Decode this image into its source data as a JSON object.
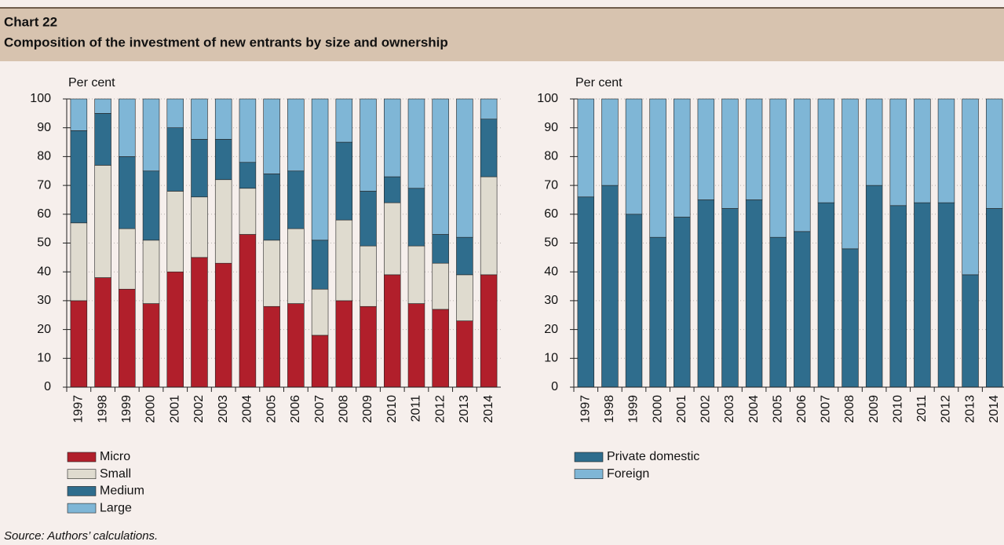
{
  "header": {
    "label": "Chart 22",
    "title": "Composition of the investment of new entrants by size and ownership"
  },
  "source": "Source: Authors’ calculations.",
  "chart_data": [
    {
      "type": "bar",
      "stacked": true,
      "y_label": "Per cent",
      "categories": [
        "1997",
        "1998",
        "1999",
        "2000",
        "2001",
        "2002",
        "2003",
        "2004",
        "2005",
        "2006",
        "2007",
        "2008",
        "2009",
        "2010",
        "2011",
        "2012",
        "2013",
        "2014"
      ],
      "series": [
        {
          "name": "Micro",
          "color": "#b11f2b",
          "values": [
            30,
            38,
            34,
            29,
            40,
            45,
            43,
            53,
            28,
            29,
            18,
            30,
            28,
            39,
            29,
            27,
            23,
            39
          ]
        },
        {
          "name": "Small",
          "color": "#dfdbcf",
          "values": [
            27,
            39,
            21,
            22,
            28,
            21,
            29,
            16,
            23,
            26,
            16,
            28,
            21,
            25,
            20,
            16,
            16,
            34
          ]
        },
        {
          "name": "Medium",
          "color": "#2f6d8d",
          "values": [
            32,
            18,
            25,
            24,
            22,
            20,
            14,
            9,
            23,
            20,
            17,
            27,
            19,
            9,
            20,
            10,
            13,
            20
          ]
        },
        {
          "name": "Large",
          "color": "#7fb6d6",
          "values": [
            11,
            5,
            20,
            25,
            10,
            14,
            14,
            22,
            26,
            25,
            49,
            15,
            32,
            27,
            31,
            47,
            48,
            7
          ]
        }
      ],
      "ylim": [
        0,
        100
      ],
      "yticks": [
        0,
        10,
        20,
        30,
        40,
        50,
        60,
        70,
        80,
        90,
        100
      ],
      "grid": true,
      "legend": "bottom"
    },
    {
      "type": "bar",
      "stacked": true,
      "y_label": "Per cent",
      "categories": [
        "1997",
        "1998",
        "1999",
        "2000",
        "2001",
        "2002",
        "2003",
        "2004",
        "2005",
        "2006",
        "2007",
        "2008",
        "2009",
        "2010",
        "2011",
        "2012",
        "2013",
        "2014"
      ],
      "series": [
        {
          "name": "Private domestic",
          "color": "#2f6d8d",
          "values": [
            66,
            70,
            60,
            52,
            59,
            65,
            62,
            65,
            52,
            54,
            64,
            48,
            70,
            63,
            64,
            64,
            39,
            62
          ]
        },
        {
          "name": "Foreign",
          "color": "#7fb6d6",
          "values": [
            34,
            30,
            40,
            48,
            41,
            35,
            38,
            35,
            48,
            46,
            36,
            52,
            30,
            37,
            36,
            36,
            61,
            38
          ]
        }
      ],
      "ylim": [
        0,
        100
      ],
      "yticks": [
        0,
        10,
        20,
        30,
        40,
        50,
        60,
        70,
        80,
        90,
        100
      ],
      "grid": true,
      "legend": "bottom"
    }
  ]
}
